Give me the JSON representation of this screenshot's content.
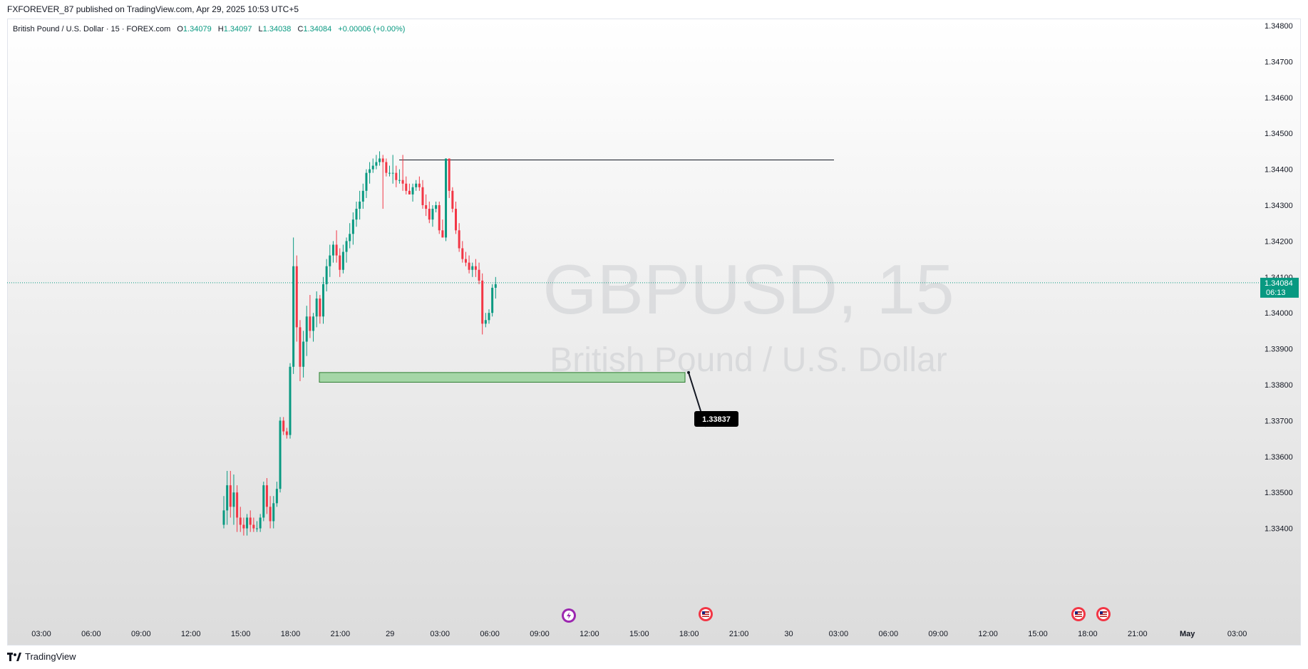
{
  "header": {
    "publisher_line": "FXFOREVER_87 published on TradingView.com, Apr 29, 2025 10:53 UTC+5"
  },
  "legend": {
    "symbol_line": "British Pound / U.S. Dollar · 15 · FOREX.com",
    "open_label": "O",
    "open": "1.34079",
    "high_label": "H",
    "high": "1.34097",
    "low_label": "L",
    "low": "1.34038",
    "close_label": "C",
    "close": "1.34084",
    "change": "+0.00006 (+0.00%)"
  },
  "watermark": {
    "symbol": "GBPUSD, 15",
    "description": "British Pound / U.S. Dollar"
  },
  "last_price": {
    "value": "1.34084",
    "countdown": "06:13"
  },
  "annotation": {
    "label": "1.33837"
  },
  "footer": {
    "brand": "TradingView"
  },
  "colors": {
    "up": "#089981",
    "down": "#f23645",
    "zone_fill": "#a5d6a7",
    "zone_border": "#2e7d32",
    "line": "#131722"
  },
  "icons": [
    "lightning-event-icon",
    "us-flag-event-icon"
  ],
  "chart_data": {
    "type": "candlestick",
    "title": "",
    "ylim": [
      1.334,
      1.348
    ],
    "y_ticks": [
      "1.34800",
      "1.34700",
      "1.34600",
      "1.34500",
      "1.34400",
      "1.34300",
      "1.34200",
      "1.34100",
      "1.34000",
      "1.33900",
      "1.33800",
      "1.33700",
      "1.33600",
      "1.33500",
      "1.33400"
    ],
    "x_ticks": [
      "03:00",
      "06:00",
      "09:00",
      "12:00",
      "15:00",
      "18:00",
      "21:00",
      "29",
      "03:00",
      "06:00",
      "09:00",
      "12:00",
      "15:00",
      "18:00",
      "21:00",
      "30",
      "03:00",
      "06:00",
      "09:00",
      "12:00",
      "15:00",
      "18:00",
      "21:00",
      "May",
      "03:00"
    ],
    "candles": [
      {
        "o": 1.3341,
        "h": 1.3349,
        "l": 1.334,
        "c": 1.3345
      },
      {
        "o": 1.3345,
        "h": 1.3356,
        "l": 1.3341,
        "c": 1.3352
      },
      {
        "o": 1.3352,
        "h": 1.3356,
        "l": 1.3343,
        "c": 1.3346
      },
      {
        "o": 1.3346,
        "h": 1.3355,
        "l": 1.3341,
        "c": 1.335
      },
      {
        "o": 1.335,
        "h": 1.3352,
        "l": 1.3339,
        "c": 1.3343
      },
      {
        "o": 1.3343,
        "h": 1.3346,
        "l": 1.3339,
        "c": 1.3341
      },
      {
        "o": 1.3341,
        "h": 1.3343,
        "l": 1.3338,
        "c": 1.334
      },
      {
        "o": 1.334,
        "h": 1.3344,
        "l": 1.3338,
        "c": 1.3343
      },
      {
        "o": 1.3343,
        "h": 1.3345,
        "l": 1.3339,
        "c": 1.3341
      },
      {
        "o": 1.3341,
        "h": 1.3343,
        "l": 1.3339,
        "c": 1.334
      },
      {
        "o": 1.334,
        "h": 1.3342,
        "l": 1.3339,
        "c": 1.334
      },
      {
        "o": 1.334,
        "h": 1.3344,
        "l": 1.3339,
        "c": 1.3343
      },
      {
        "o": 1.3343,
        "h": 1.3353,
        "l": 1.3342,
        "c": 1.3352
      },
      {
        "o": 1.3352,
        "h": 1.3354,
        "l": 1.3344,
        "c": 1.3346
      },
      {
        "o": 1.3346,
        "h": 1.3349,
        "l": 1.334,
        "c": 1.3342
      },
      {
        "o": 1.3342,
        "h": 1.3349,
        "l": 1.334,
        "c": 1.3347
      },
      {
        "o": 1.3347,
        "h": 1.3353,
        "l": 1.3346,
        "c": 1.3351
      },
      {
        "o": 1.3351,
        "h": 1.3371,
        "l": 1.335,
        "c": 1.337
      },
      {
        "o": 1.337,
        "h": 1.3371,
        "l": 1.3366,
        "c": 1.3367
      },
      {
        "o": 1.3367,
        "h": 1.3368,
        "l": 1.3365,
        "c": 1.3366
      },
      {
        "o": 1.3366,
        "h": 1.3386,
        "l": 1.3365,
        "c": 1.3385
      },
      {
        "o": 1.3385,
        "h": 1.3421,
        "l": 1.3383,
        "c": 1.3413
      },
      {
        "o": 1.3413,
        "h": 1.3416,
        "l": 1.3392,
        "c": 1.3396
      },
      {
        "o": 1.3396,
        "h": 1.3398,
        "l": 1.3381,
        "c": 1.3385
      },
      {
        "o": 1.3385,
        "h": 1.3395,
        "l": 1.3382,
        "c": 1.3392
      },
      {
        "o": 1.3392,
        "h": 1.3402,
        "l": 1.3388,
        "c": 1.3399
      },
      {
        "o": 1.3399,
        "h": 1.3405,
        "l": 1.3393,
        "c": 1.3395
      },
      {
        "o": 1.3395,
        "h": 1.34,
        "l": 1.3392,
        "c": 1.3399
      },
      {
        "o": 1.3399,
        "h": 1.3406,
        "l": 1.3396,
        "c": 1.3404
      },
      {
        "o": 1.3404,
        "h": 1.3405,
        "l": 1.3397,
        "c": 1.3399
      },
      {
        "o": 1.3399,
        "h": 1.341,
        "l": 1.3397,
        "c": 1.3408
      },
      {
        "o": 1.3408,
        "h": 1.3415,
        "l": 1.3406,
        "c": 1.3413
      },
      {
        "o": 1.3413,
        "h": 1.3419,
        "l": 1.341,
        "c": 1.3416
      },
      {
        "o": 1.3416,
        "h": 1.342,
        "l": 1.3414,
        "c": 1.3419
      },
      {
        "o": 1.3419,
        "h": 1.3423,
        "l": 1.3414,
        "c": 1.3416
      },
      {
        "o": 1.3416,
        "h": 1.3418,
        "l": 1.341,
        "c": 1.3412
      },
      {
        "o": 1.3412,
        "h": 1.3419,
        "l": 1.3411,
        "c": 1.3417
      },
      {
        "o": 1.3417,
        "h": 1.3421,
        "l": 1.3414,
        "c": 1.342
      },
      {
        "o": 1.342,
        "h": 1.3425,
        "l": 1.3418,
        "c": 1.3422
      },
      {
        "o": 1.3422,
        "h": 1.3428,
        "l": 1.3419,
        "c": 1.3426
      },
      {
        "o": 1.3426,
        "h": 1.3431,
        "l": 1.3424,
        "c": 1.3429
      },
      {
        "o": 1.3429,
        "h": 1.3434,
        "l": 1.3426,
        "c": 1.3431
      },
      {
        "o": 1.3431,
        "h": 1.3436,
        "l": 1.3429,
        "c": 1.3434
      },
      {
        "o": 1.3434,
        "h": 1.344,
        "l": 1.3432,
        "c": 1.3439
      },
      {
        "o": 1.3439,
        "h": 1.3442,
        "l": 1.3436,
        "c": 1.344
      },
      {
        "o": 1.344,
        "h": 1.3443,
        "l": 1.3439,
        "c": 1.3441
      },
      {
        "o": 1.3441,
        "h": 1.3444,
        "l": 1.344,
        "c": 1.3442
      },
      {
        "o": 1.3442,
        "h": 1.3445,
        "l": 1.3441,
        "c": 1.3443
      },
      {
        "o": 1.3443,
        "h": 1.3444,
        "l": 1.3429,
        "c": 1.3442
      },
      {
        "o": 1.3442,
        "h": 1.3443,
        "l": 1.3438,
        "c": 1.3439
      },
      {
        "o": 1.3439,
        "h": 1.3441,
        "l": 1.3438,
        "c": 1.3439
      },
      {
        "o": 1.3439,
        "h": 1.3444,
        "l": 1.3436,
        "c": 1.3439
      },
      {
        "o": 1.3439,
        "h": 1.3441,
        "l": 1.3435,
        "c": 1.3437
      },
      {
        "o": 1.3437,
        "h": 1.344,
        "l": 1.3436,
        "c": 1.3437
      },
      {
        "o": 1.3437,
        "h": 1.3444,
        "l": 1.3434,
        "c": 1.3436
      },
      {
        "o": 1.3436,
        "h": 1.3438,
        "l": 1.3433,
        "c": 1.3434
      },
      {
        "o": 1.3434,
        "h": 1.3436,
        "l": 1.3433,
        "c": 1.3433
      },
      {
        "o": 1.3433,
        "h": 1.3436,
        "l": 1.3431,
        "c": 1.3435
      },
      {
        "o": 1.3435,
        "h": 1.3437,
        "l": 1.3434,
        "c": 1.3436
      },
      {
        "o": 1.3436,
        "h": 1.3438,
        "l": 1.3434,
        "c": 1.3435
      },
      {
        "o": 1.3435,
        "h": 1.3437,
        "l": 1.3429,
        "c": 1.343
      },
      {
        "o": 1.343,
        "h": 1.3433,
        "l": 1.3427,
        "c": 1.3429
      },
      {
        "o": 1.3429,
        "h": 1.3431,
        "l": 1.3425,
        "c": 1.3426
      },
      {
        "o": 1.3426,
        "h": 1.343,
        "l": 1.3424,
        "c": 1.3429
      },
      {
        "o": 1.3429,
        "h": 1.3431,
        "l": 1.3428,
        "c": 1.343
      },
      {
        "o": 1.343,
        "h": 1.3431,
        "l": 1.3422,
        "c": 1.3423
      },
      {
        "o": 1.3423,
        "h": 1.3426,
        "l": 1.3421,
        "c": 1.3421
      },
      {
        "o": 1.3421,
        "h": 1.3443,
        "l": 1.342,
        "c": 1.3443
      },
      {
        "o": 1.3443,
        "h": 1.3443,
        "l": 1.3432,
        "c": 1.3434
      },
      {
        "o": 1.3434,
        "h": 1.3435,
        "l": 1.3428,
        "c": 1.3429
      },
      {
        "o": 1.3429,
        "h": 1.3431,
        "l": 1.3422,
        "c": 1.3423
      },
      {
        "o": 1.3423,
        "h": 1.3425,
        "l": 1.3417,
        "c": 1.3418
      },
      {
        "o": 1.3418,
        "h": 1.342,
        "l": 1.3414,
        "c": 1.3415
      },
      {
        "o": 1.3415,
        "h": 1.3417,
        "l": 1.3413,
        "c": 1.3414
      },
      {
        "o": 1.3414,
        "h": 1.3416,
        "l": 1.3411,
        "c": 1.3412
      },
      {
        "o": 1.3412,
        "h": 1.3414,
        "l": 1.341,
        "c": 1.3413
      },
      {
        "o": 1.3413,
        "h": 1.3415,
        "l": 1.341,
        "c": 1.3412
      },
      {
        "o": 1.3412,
        "h": 1.3414,
        "l": 1.3408,
        "c": 1.3409
      },
      {
        "o": 1.3409,
        "h": 1.3411,
        "l": 1.3394,
        "c": 1.3397
      },
      {
        "o": 1.3397,
        "h": 1.34,
        "l": 1.3396,
        "c": 1.3398
      },
      {
        "o": 1.3398,
        "h": 1.3401,
        "l": 1.3397,
        "c": 1.34
      },
      {
        "o": 1.34,
        "h": 1.3408,
        "l": 1.3399,
        "c": 1.3407
      },
      {
        "o": 1.3407,
        "h": 1.341,
        "l": 1.3404,
        "c": 1.3408
      }
    ],
    "resistance_level": 1.34426,
    "demand_zone": {
      "top": 1.33834,
      "bottom": 1.33807
    },
    "annotated_price": 1.33837
  }
}
